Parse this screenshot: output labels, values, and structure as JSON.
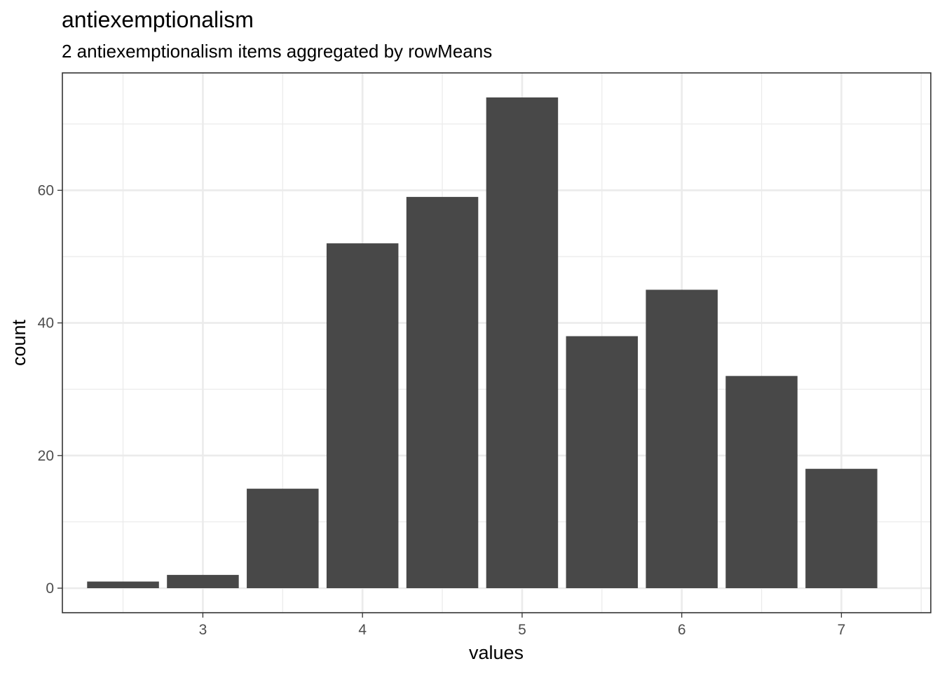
{
  "chart_data": {
    "type": "bar",
    "title": "antiexemptionalism",
    "subtitle": "2 antiexemptionalism items aggregated by rowMeans",
    "xlabel": "values",
    "ylabel": "count",
    "x": [
      2.5,
      3.0,
      3.5,
      4.0,
      4.5,
      5.0,
      5.5,
      6.0,
      6.5,
      7.0
    ],
    "values": [
      1,
      2,
      15,
      52,
      59,
      74,
      38,
      45,
      32,
      18
    ],
    "bar_width": 0.45,
    "xlim": [
      2.12,
      7.56
    ],
    "ylim": [
      -3.7,
      77.7
    ],
    "x_ticks": [
      3,
      4,
      5,
      6,
      7
    ],
    "x_tick_labels": [
      "3",
      "4",
      "5",
      "6",
      "7"
    ],
    "y_ticks": [
      0,
      20,
      40,
      60
    ],
    "y_tick_labels": [
      "0",
      "20",
      "40",
      "60"
    ],
    "grid": true,
    "colors": {
      "bar": "#484848",
      "grid": "#ebebeb",
      "border": "#333333"
    }
  }
}
